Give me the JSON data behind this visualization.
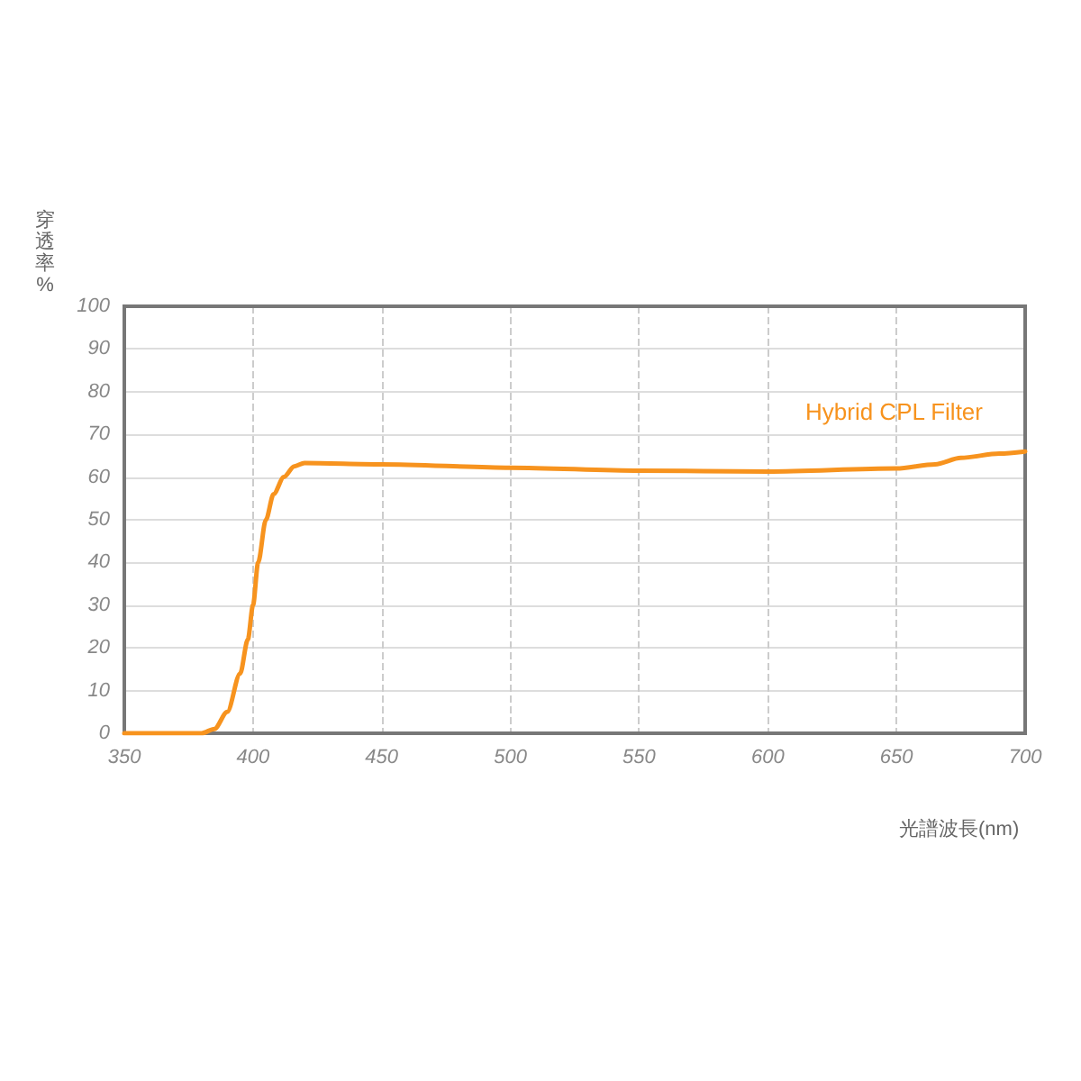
{
  "chart_data": {
    "type": "line",
    "xlabel": "光譜波長(nm)",
    "ylabel": "穿透率%",
    "series": [
      {
        "name": "Hybrid CPL Filter",
        "color": "#f7931e",
        "x": [
          350,
          380,
          385,
          390,
          395,
          398,
          400,
          402,
          405,
          408,
          412,
          416,
          420,
          450,
          500,
          550,
          600,
          650,
          665,
          675,
          690,
          700
        ],
        "values": [
          0,
          0,
          1,
          5,
          14,
          22,
          30,
          40,
          50,
          56,
          60,
          62.5,
          63.3,
          63,
          62.2,
          61.5,
          61.3,
          62,
          63,
          64.5,
          65.5,
          66
        ]
      }
    ],
    "xlim": [
      350,
      700
    ],
    "xticks": [
      350,
      400,
      450,
      500,
      550,
      600,
      650,
      700
    ],
    "ylim": [
      0,
      100
    ],
    "yticks": [
      0,
      10,
      20,
      30,
      40,
      50,
      60,
      70,
      80,
      90,
      100
    ],
    "grid": true,
    "legend": false,
    "marker": "none",
    "line_style": "solid"
  }
}
